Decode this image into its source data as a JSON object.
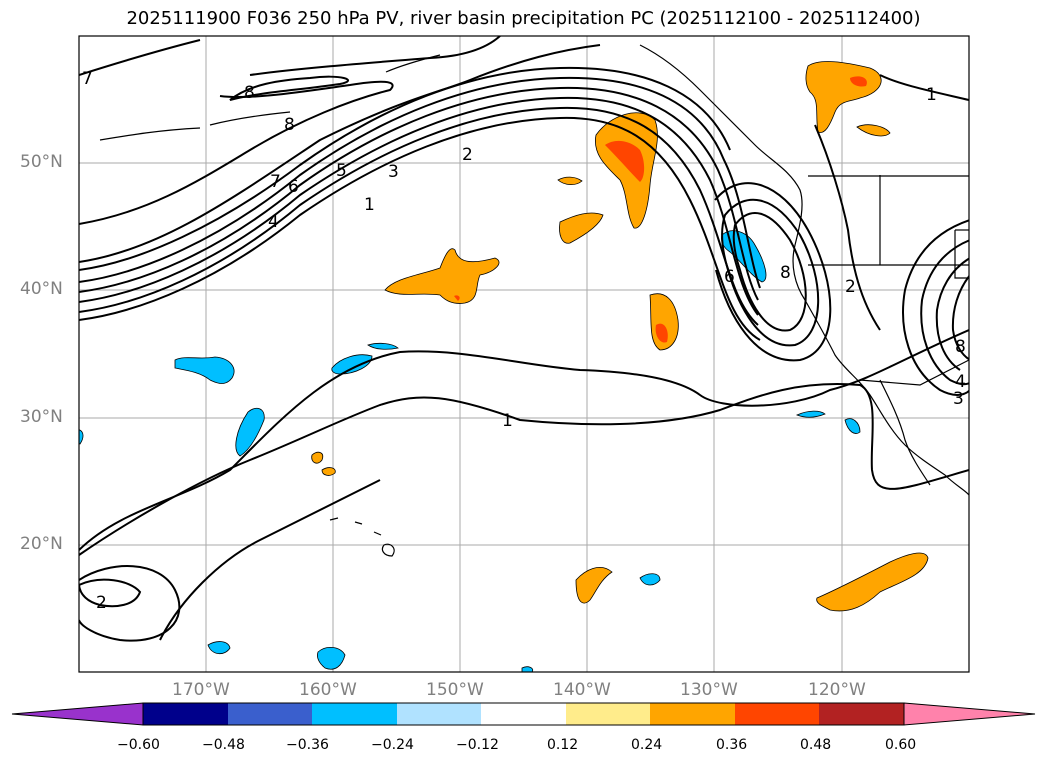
{
  "title": "2025111900 F036 250 hPa PV, river basin precipitation PC (2025112100 - 2025112400)",
  "map": {
    "lat_labels": [
      "50°N",
      "40°N",
      "30°N",
      "20°N"
    ],
    "lon_labels": [
      "170°W",
      "160°W",
      "150°W",
      "140°W",
      "130°W",
      "120°W"
    ],
    "pv_contour_labels": [
      "7",
      "8",
      "8",
      "7",
      "6",
      "5",
      "4",
      "3",
      "2",
      "1",
      "1",
      "6",
      "8",
      "2",
      "1",
      "2",
      "8",
      "4",
      "3"
    ]
  },
  "colorbar": {
    "tick_labels": [
      "−0.60",
      "−0.48",
      "−0.36",
      "−0.24",
      "−0.12",
      "0.12",
      "0.24",
      "0.36",
      "0.48",
      "0.60"
    ],
    "colors": [
      "#9932cc",
      "#00008b",
      "#3a5fcd",
      "#00bfff",
      "#b0e2ff",
      "#ffffff",
      "#ffec8b",
      "#ffa500",
      "#ff4500",
      "#b22222",
      "#ff82ab"
    ]
  }
}
